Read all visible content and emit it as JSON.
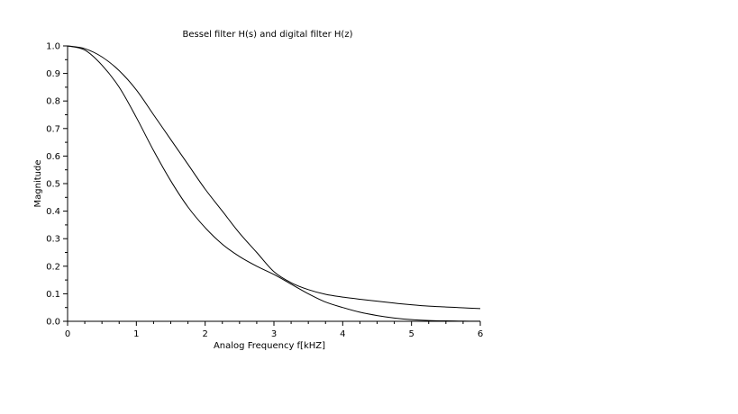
{
  "chart_data": {
    "type": "line",
    "title": "Bessel filter H(s) and digital filter H(z)",
    "xlabel": "Analog Frequency f[kHZ]",
    "ylabel": "Magnitude",
    "xlim": [
      0,
      6
    ],
    "ylim": [
      0,
      1
    ],
    "x_ticks": [
      "0",
      "1",
      "2",
      "3",
      "4",
      "5",
      "6"
    ],
    "y_ticks": [
      "0.0",
      "0.1",
      "0.2",
      "0.3",
      "0.4",
      "0.5",
      "0.6",
      "0.7",
      "0.8",
      "0.9",
      "1.0"
    ],
    "grid": false,
    "line_color": "#000000",
    "series": [
      {
        "x": [
          0,
          0.25,
          0.5,
          0.75,
          1.0,
          1.25,
          1.5,
          1.75,
          2.0,
          2.25,
          2.5,
          2.75,
          3.0,
          3.25,
          3.5,
          3.75,
          4.0,
          4.25,
          4.5,
          4.75,
          5.0,
          5.25,
          5.5,
          5.75,
          6.0
        ],
        "values": [
          1.0,
          0.99,
          0.96,
          0.91,
          0.84,
          0.75,
          0.66,
          0.57,
          0.48,
          0.4,
          0.32,
          0.25,
          0.18,
          0.14,
          0.115,
          0.098,
          0.088,
          0.08,
          0.073,
          0.066,
          0.06,
          0.055,
          0.052,
          0.049,
          0.046
        ]
      },
      {
        "x": [
          0,
          0.25,
          0.5,
          0.75,
          1.0,
          1.25,
          1.5,
          1.75,
          2.0,
          2.25,
          2.5,
          2.75,
          3.0,
          3.25,
          3.5,
          3.75,
          4.0,
          4.25,
          4.5,
          4.75,
          5.0,
          5.25,
          5.5,
          5.75,
          6.0
        ],
        "values": [
          1.0,
          0.985,
          0.93,
          0.85,
          0.74,
          0.62,
          0.51,
          0.415,
          0.34,
          0.28,
          0.235,
          0.2,
          0.17,
          0.135,
          0.1,
          0.07,
          0.05,
          0.033,
          0.021,
          0.012,
          0.006,
          0.003,
          0.0015,
          0.0007,
          0.0003
        ]
      }
    ]
  }
}
